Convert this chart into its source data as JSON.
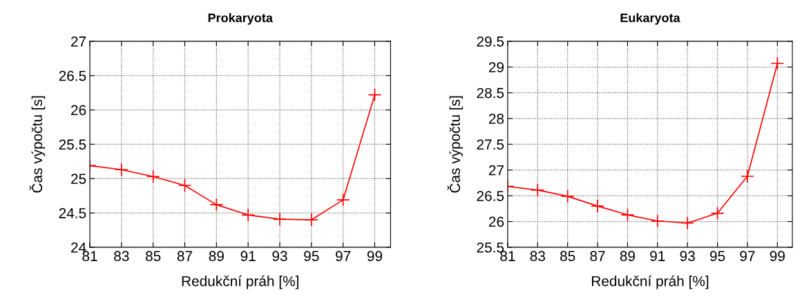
{
  "chart_data": [
    {
      "type": "line",
      "title": "Prokaryota",
      "xlabel": "Redukční práh [%]",
      "ylabel": "Čas výpočtu [s]",
      "x": [
        81,
        83,
        85,
        87,
        89,
        91,
        93,
        95,
        97,
        99
      ],
      "series": [
        {
          "color": "#ff0000",
          "values": [
            25.19,
            25.13,
            25.03,
            24.9,
            24.62,
            24.47,
            24.41,
            24.4,
            24.69,
            26.22
          ]
        }
      ],
      "xlim": [
        81,
        100
      ],
      "xticks": [
        81,
        83,
        85,
        87,
        89,
        91,
        93,
        95,
        97,
        99
      ],
      "ylim": [
        24,
        27
      ],
      "yticks": [
        24,
        24.5,
        25,
        25.5,
        26,
        26.5,
        27
      ],
      "grid": true,
      "marker": "cross",
      "line_style": "solid"
    },
    {
      "type": "line",
      "title": "Eukaryota",
      "xlabel": "Redukční práh [%]",
      "ylabel": "Čas výpočtu [s]",
      "x": [
        81,
        83,
        85,
        87,
        89,
        91,
        93,
        95,
        97,
        99
      ],
      "series": [
        {
          "color": "#ff0000",
          "values": [
            26.68,
            26.61,
            26.49,
            26.3,
            26.13,
            26.01,
            25.97,
            26.16,
            26.88,
            29.07
          ]
        }
      ],
      "xlim": [
        81,
        100
      ],
      "xticks": [
        81,
        83,
        85,
        87,
        89,
        91,
        93,
        95,
        97,
        99
      ],
      "ylim": [
        25.5,
        29.5
      ],
      "yticks": [
        25.5,
        26,
        26.5,
        27,
        27.5,
        28,
        28.5,
        29,
        29.5
      ],
      "grid": true,
      "marker": "cross",
      "line_style": "solid"
    }
  ]
}
